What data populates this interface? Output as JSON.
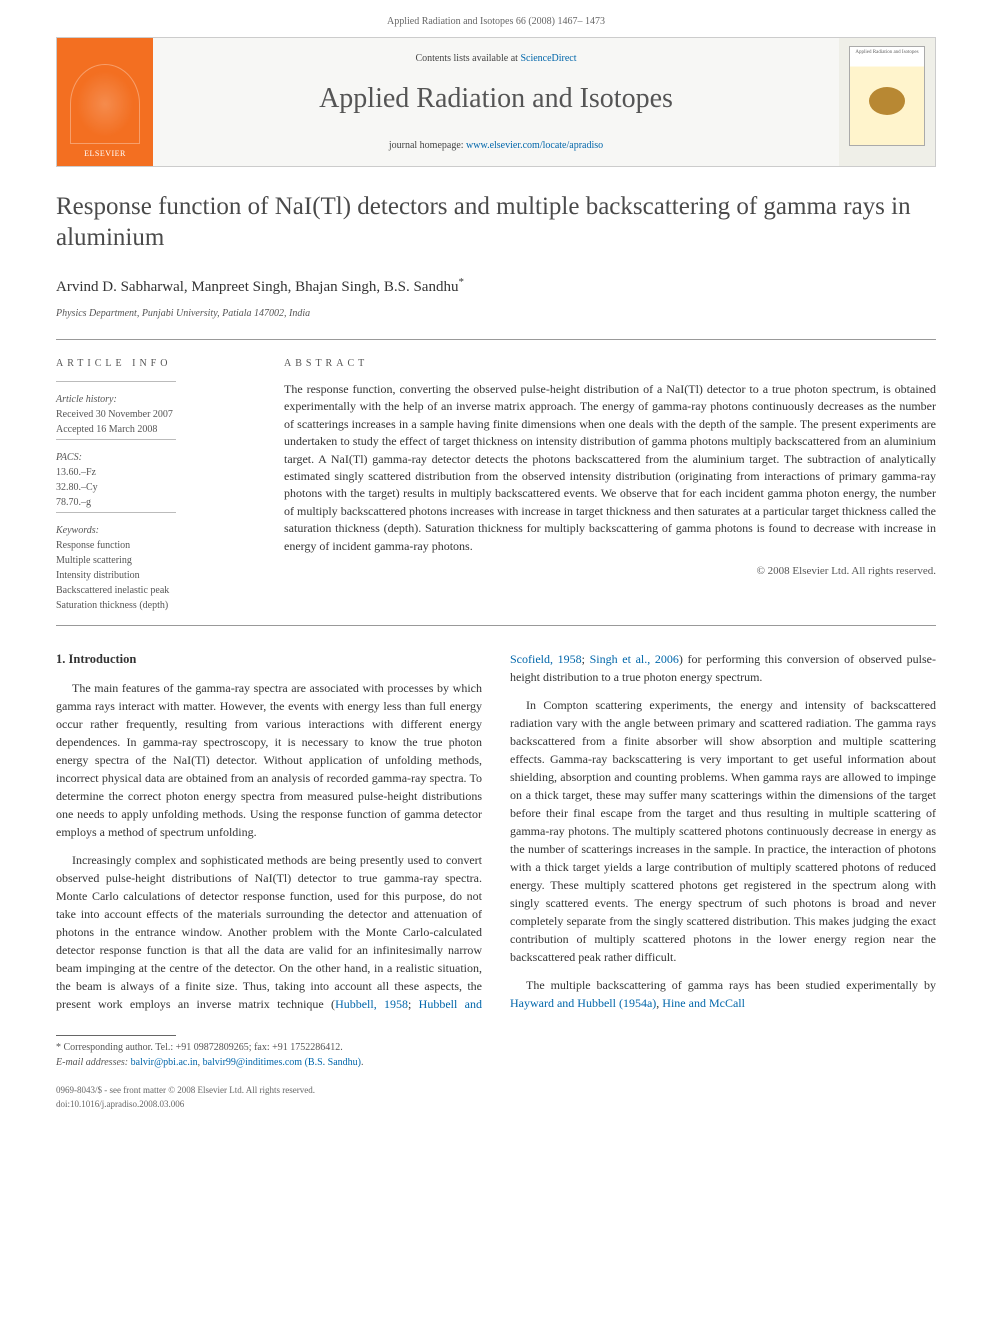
{
  "journal_header": "Applied Radiation and Isotopes 66 (2008) 1467– 1473",
  "banner": {
    "publisher": "ELSEVIER",
    "contents_prefix": "Contents lists available at ",
    "contents_link": "ScienceDirect",
    "journal_name": "Applied Radiation and Isotopes",
    "homepage_prefix": "journal homepage: ",
    "homepage_url": "www.elsevier.com/locate/apradiso",
    "cover_caption": "Applied Radiation and Isotopes"
  },
  "article": {
    "title": "Response function of NaI(Tl) detectors and multiple backscattering of gamma rays in aluminium",
    "authors": "Arvind D. Sabharwal, Manpreet Singh, Bhajan Singh, B.S. Sandhu",
    "corresponding_marker": "*",
    "affiliation": "Physics Department, Punjabi University, Patiala 147002, India"
  },
  "meta": {
    "info_heading": "article info",
    "history_label": "Article history:",
    "received": "Received 30 November 2007",
    "accepted": "Accepted 16 March 2008",
    "pacs_label": "PACS:",
    "pacs": [
      "13.60.–Fz",
      "32.80.–Cy",
      "78.70.–g"
    ],
    "keywords_label": "Keywords:",
    "keywords": [
      "Response function",
      "Multiple scattering",
      "Intensity distribution",
      "Backscattered inelastic peak",
      "Saturation thickness (depth)"
    ]
  },
  "abstract": {
    "heading": "abstract",
    "text": "The response function, converting the observed pulse-height distribution of a NaI(Tl) detector to a true photon spectrum, is obtained experimentally with the help of an inverse matrix approach. The energy of gamma-ray photons continuously decreases as the number of scatterings increases in a sample having finite dimensions when one deals with the depth of the sample. The present experiments are undertaken to study the effect of target thickness on intensity distribution of gamma photons multiply backscattered from an aluminium target. A NaI(Tl) gamma-ray detector detects the photons backscattered from the aluminium target. The subtraction of analytically estimated singly scattered distribution from the observed intensity distribution (originating from interactions of primary gamma-ray photons with the target) results in multiply backscattered events. We observe that for each incident gamma photon energy, the number of multiply backscattered photons increases with increase in target thickness and then saturates at a particular target thickness called the saturation thickness (depth). Saturation thickness for multiply backscattering of gamma photons is found to decrease with increase in energy of incident gamma-ray photons.",
    "copyright": "© 2008 Elsevier Ltd. All rights reserved."
  },
  "body": {
    "section1_heading": "1.  Introduction",
    "p1": "The main features of the gamma-ray spectra are associated with processes by which gamma rays interact with matter. However, the events with energy less than full energy occur rather frequently, resulting from various interactions with different energy dependences. In gamma-ray spectroscopy, it is necessary to know the true photon energy spectra of the NaI(Tl) detector. Without application of unfolding methods, incorrect physical data are obtained from an analysis of recorded gamma-ray spectra. To determine the correct photon energy spectra from measured pulse-height distributions one needs to apply unfolding methods. Using the response function of gamma detector employs a method of spectrum unfolding.",
    "p2_a": "Increasingly complex and sophisticated methods are being presently used to convert observed pulse-height distributions of NaI(Tl) detector to true gamma-ray spectra. Monte Carlo calculations of detector response function, used for this purpose, do not take into account effects of the materials surrounding the detector and attenuation of photons in the entrance window. Another problem with the Monte Carlo-calculated detector response function is that all the data are valid for an infinitesimally narrow beam impinging at the centre of the detector. On the other hand, in a ",
    "p2_b": "realistic situation, the beam is always of a finite size. Thus, taking into account all these aspects, the present work employs an inverse matrix technique (",
    "cite1": "Hubbell, 1958",
    "sep1": "; ",
    "cite2": "Hubbell and Scofield, 1958",
    "sep2": "; ",
    "cite3": "Singh et al., 2006",
    "p2_c": ") for performing this conversion of observed pulse-height distribution to a true photon energy spectrum.",
    "p3": "In Compton scattering experiments, the energy and intensity of backscattered radiation vary with the angle between primary and scattered radiation. The gamma rays backscattered from a finite absorber will show absorption and multiple scattering effects. Gamma-ray backscattering is very important to get useful information about shielding, absorption and counting problems. When gamma rays are allowed to impinge on a thick target, these may suffer many scatterings within the dimensions of the target before their final escape from the target and thus resulting in multiple scattering of gamma-ray photons. The multiply scattered photons continuously decrease in energy as the number of scatterings increases in the sample. In practice, the interaction of photons with a thick target yields a large contribution of multiply scattered photons of reduced energy. These multiply scattered photons get registered in the spectrum along with singly scattered events. The energy spectrum of such photons is broad and never completely separate from the singly scattered distribution. This makes judging the exact contribution of multiply scattered photons in the lower energy region near the backscattered peak rather difficult.",
    "p4_a": "The multiple backscattering of gamma rays has been studied experimentally by ",
    "cite4": "Hayward and Hubbell (1954a)",
    "sep4": ", ",
    "cite5": "Hine and McCall"
  },
  "footnotes": {
    "corr": "* Corresponding author. Tel.: +91 09872809265; fax: +91 1752286412.",
    "email_label": "E-mail addresses: ",
    "email1": "balvir@pbi.ac.in",
    "email_sep": ", ",
    "email2": "balvir99@inditimes.com (B.S. Sandhu)",
    "email_tail": "."
  },
  "footer": {
    "left1": "0969-8043/$ - see front matter © 2008 Elsevier Ltd. All rights reserved.",
    "left2": "doi:10.1016/j.apradiso.2008.03.006"
  },
  "colors": {
    "brand_orange": "#f36f21",
    "link_blue": "#0066aa",
    "text": "#333333",
    "muted": "#666666",
    "rule": "#999999"
  }
}
